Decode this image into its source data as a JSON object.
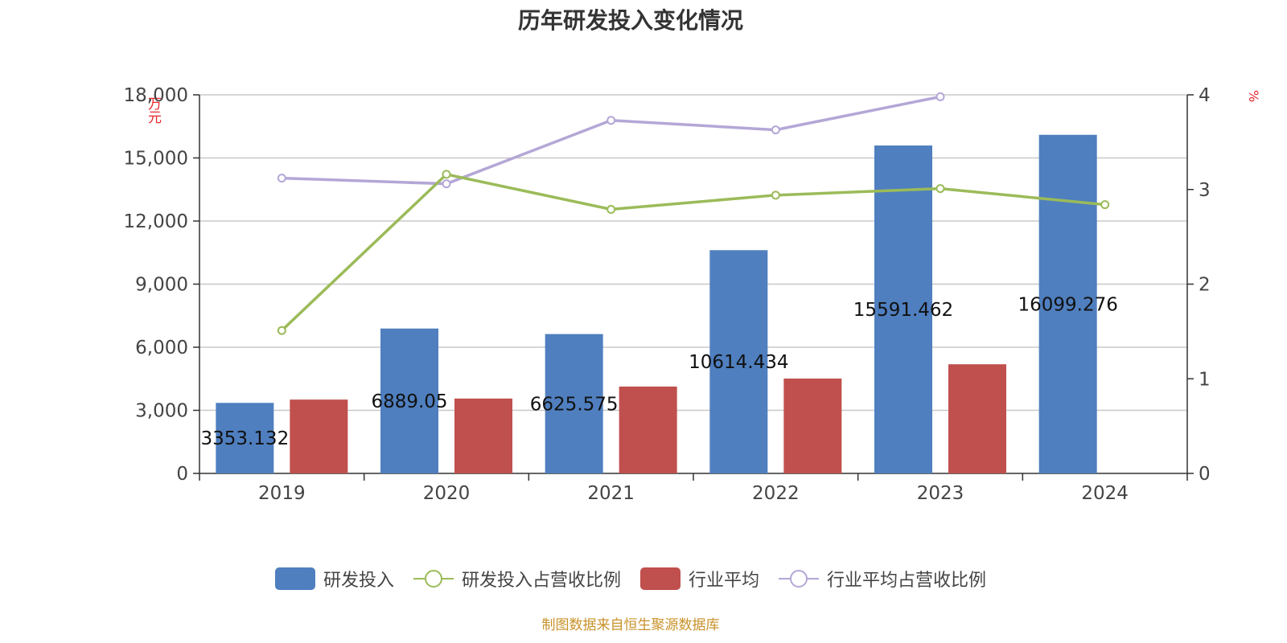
{
  "title": "历年研发投入变化情况",
  "source": "制图数据来自恒生聚源数据库",
  "colors": {
    "rd": "#4f7fbf",
    "industry": "#c0504d",
    "rd_ratio": "#9bbb59",
    "industry_ratio": "#b4a7d6"
  },
  "chart_data": {
    "type": "bar",
    "title": "历年研发投入变化情况",
    "categories": [
      "2019",
      "2020",
      "2021",
      "2022",
      "2023",
      "2024"
    ],
    "left_axis": {
      "unit": "万元",
      "ylim": [
        0,
        18000
      ],
      "ticks": [
        "0",
        "3,000",
        "6,000",
        "9,000",
        "12,000",
        "15,000",
        "18,000"
      ]
    },
    "right_axis": {
      "unit": "%",
      "ylim": [
        0,
        4
      ],
      "ticks": [
        "0",
        "1",
        "2",
        "3",
        "4"
      ]
    },
    "series": [
      {
        "name": "研发投入",
        "kind": "bar",
        "axis": "left",
        "values": [
          3353.132,
          6889.05,
          6625.575,
          10614.434,
          15591.462,
          16099.276
        ],
        "labels": [
          "3353.132",
          "6889.05",
          "6625.575",
          "10614.434",
          "15591.462",
          "16099.276"
        ]
      },
      {
        "name": "研发投入占营收比例",
        "kind": "line",
        "axis": "right",
        "values": [
          1.51,
          3.16,
          2.79,
          2.94,
          3.01,
          2.84
        ]
      },
      {
        "name": "行业平均",
        "kind": "bar",
        "axis": "left",
        "values": [
          3510,
          3560,
          4130,
          4510,
          5190,
          null
        ]
      },
      {
        "name": "行业平均占营收比例",
        "kind": "line",
        "axis": "right",
        "values": [
          3.12,
          3.06,
          3.73,
          3.63,
          3.98,
          null
        ]
      }
    ],
    "grid": true,
    "legend_position": "bottom"
  }
}
